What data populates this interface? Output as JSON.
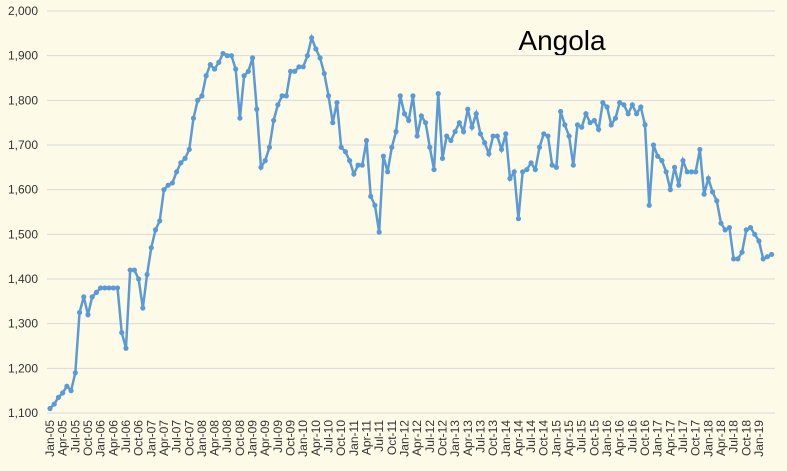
{
  "chart_data": {
    "type": "line",
    "title": "Angola",
    "categories": [
      "Jan-05",
      null,
      null,
      "Apr-05",
      null,
      null,
      "Jul-05",
      null,
      null,
      "Oct-05",
      null,
      null,
      "Jan-06",
      null,
      null,
      "Apr-06",
      null,
      null,
      "Jul-06",
      null,
      null,
      "Oct-06",
      null,
      null,
      "Jan-07",
      null,
      null,
      "Apr-07",
      null,
      null,
      "Jul-07",
      null,
      null,
      "Oct-07",
      null,
      null,
      "Jan-08",
      null,
      null,
      "Apr-08",
      null,
      null,
      "Jul-08",
      null,
      null,
      "Oct-08",
      null,
      null,
      "Jan-09",
      null,
      null,
      "Apr-09",
      null,
      null,
      "Jul-09",
      null,
      null,
      "Oct-09",
      null,
      null,
      "Jan-10",
      null,
      null,
      "Apr-10",
      null,
      null,
      "Jul-10",
      null,
      null,
      "Oct-10",
      null,
      null,
      "Jan-11",
      null,
      null,
      "Apr-11",
      null,
      null,
      "Jul-11",
      null,
      null,
      "Oct-11",
      null,
      null,
      "Jan-12",
      null,
      null,
      "Apr-12",
      null,
      null,
      "Jul-12",
      null,
      null,
      "Oct-12",
      null,
      null,
      "Jan-13",
      null,
      null,
      "Apr-13",
      null,
      null,
      "Jul-13",
      null,
      null,
      "Oct-13",
      null,
      null,
      "Jan-14",
      null,
      null,
      "Apr-14",
      null,
      null,
      "Jul-14",
      null,
      null,
      "Oct-14",
      null,
      null,
      "Jan-15",
      null,
      null,
      "Apr-15",
      null,
      null,
      "Jul-15",
      null,
      null,
      "Oct-15",
      null,
      null,
      "Jan-16",
      null,
      null,
      "Apr-16",
      null,
      null,
      "Jul-16",
      null,
      null,
      "Oct-16",
      null,
      null,
      "Jan-17",
      null,
      null,
      "Apr-17",
      null,
      null,
      "Jul-17",
      null,
      null,
      "Oct-17",
      null,
      null,
      "Jan-18",
      null,
      null,
      "Apr-18",
      null,
      null,
      "Jul-18",
      null,
      null,
      "Oct-18",
      null,
      null,
      "Jan-19",
      null,
      null,
      null
    ],
    "values": [
      1110,
      1120,
      1135,
      1145,
      1160,
      1150,
      1190,
      1325,
      1360,
      1320,
      1360,
      1370,
      1380,
      1380,
      1380,
      1380,
      1380,
      1280,
      1245,
      1420,
      1420,
      1400,
      1335,
      1410,
      1470,
      1510,
      1530,
      1600,
      1610,
      1615,
      1640,
      1660,
      1670,
      1690,
      1760,
      1800,
      1810,
      1855,
      1880,
      1870,
      1885,
      1905,
      1900,
      1900,
      1870,
      1760,
      1855,
      1865,
      1895,
      1780,
      1650,
      1665,
      1695,
      1755,
      1790,
      1810,
      1810,
      1865,
      1865,
      1875,
      1875,
      1900,
      1940,
      1915,
      1895,
      1860,
      1810,
      1750,
      1795,
      1695,
      1685,
      1665,
      1635,
      1655,
      1655,
      1710,
      1585,
      1565,
      1505,
      1675,
      1640,
      1695,
      1730,
      1810,
      1770,
      1755,
      1810,
      1720,
      1765,
      1750,
      1695,
      1645,
      1815,
      1670,
      1720,
      1710,
      1730,
      1750,
      1730,
      1780,
      1740,
      1770,
      1725,
      1705,
      1680,
      1720,
      1720,
      1690,
      1725,
      1625,
      1640,
      1535,
      1640,
      1645,
      1660,
      1645,
      1695,
      1725,
      1720,
      1655,
      1650,
      1775,
      1745,
      1720,
      1655,
      1745,
      1740,
      1770,
      1750,
      1755,
      1735,
      1795,
      1785,
      1745,
      1760,
      1795,
      1790,
      1770,
      1790,
      1770,
      1785,
      1745,
      1565,
      1700,
      1675,
      1665,
      1640,
      1600,
      1650,
      1610,
      1665,
      1640,
      1640,
      1640,
      1690,
      1590,
      1625,
      1595,
      1575,
      1525,
      1510,
      1515,
      1445,
      1445,
      1460,
      1510,
      1515,
      1500,
      1485,
      1445,
      1450,
      1455
    ],
    "color": "#5b9bd5",
    "ylim": [
      1100,
      2000
    ],
    "yticks": [
      {
        "value": 1100,
        "label": "1,100"
      },
      {
        "value": 1200,
        "label": "1,200"
      },
      {
        "value": 1300,
        "label": "1,300"
      },
      {
        "value": 1400,
        "label": "1,400"
      },
      {
        "value": 1500,
        "label": "1,500"
      },
      {
        "value": 1600,
        "label": "1,600"
      },
      {
        "value": 1700,
        "label": "1,700"
      },
      {
        "value": 1800,
        "label": "1,800"
      },
      {
        "value": 1900,
        "label": "1,900"
      },
      {
        "value": 2000,
        "label": "2,000"
      }
    ],
    "grid": true
  }
}
